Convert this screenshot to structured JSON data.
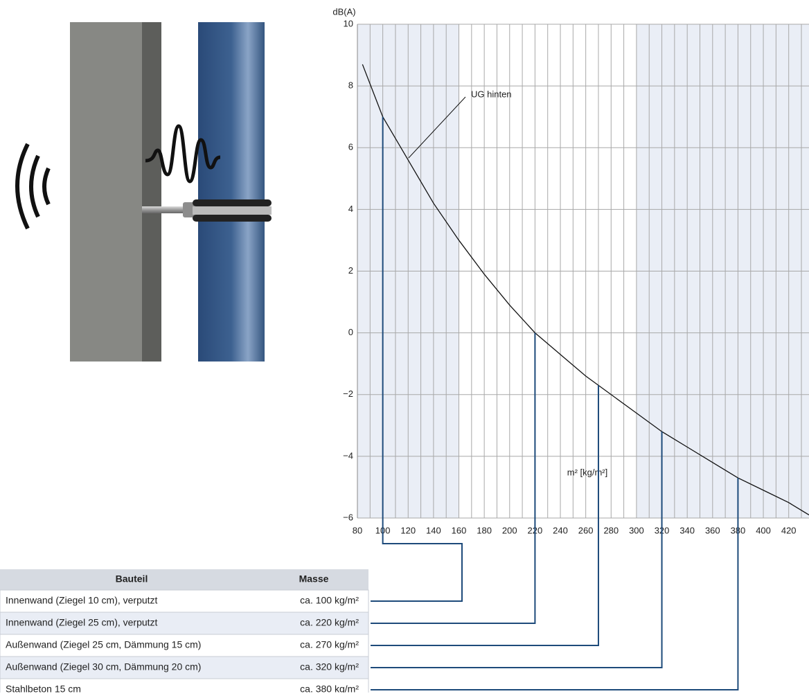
{
  "chart_data": {
    "type": "line",
    "y_label": "dB(A)",
    "x_label": "m² [kg/m²]",
    "annotation": "UG hinten",
    "x": [
      84,
      100,
      120,
      140,
      160,
      180,
      200,
      220,
      240,
      260,
      270,
      280,
      300,
      320,
      340,
      360,
      380,
      400,
      420,
      436
    ],
    "series": [
      {
        "name": "UG hinten",
        "color": "#111111",
        "values": [
          8.7,
          7.0,
          5.6,
          4.2,
          3.0,
          1.9,
          0.9,
          0,
          -0.7,
          -1.4,
          -1.7,
          -2.0,
          -2.6,
          -3.2,
          -3.7,
          -4.2,
          -4.7,
          -5.1,
          -5.5,
          -5.9
        ]
      }
    ],
    "xlim": [
      80,
      436
    ],
    "ylim": [
      -6,
      10
    ],
    "xticks": [
      80,
      100,
      120,
      140,
      160,
      180,
      200,
      220,
      240,
      260,
      280,
      300,
      320,
      340,
      360,
      380,
      400,
      420
    ],
    "yticks": [
      {
        "value": -6,
        "label": "−6"
      },
      {
        "value": -4,
        "label": "−4"
      },
      {
        "value": -2,
        "label": "−2"
      },
      0,
      2,
      4,
      6,
      8,
      10
    ],
    "grid": true,
    "shaded_bands": [
      [
        80,
        160
      ],
      [
        300,
        436
      ]
    ],
    "band_color": "#eaeef6",
    "marker_x": [
      100,
      220,
      270,
      320,
      380
    ],
    "marker_color": "#1d4a7a"
  },
  "table": {
    "header": [
      "Bauteil",
      "Masse"
    ],
    "rows": [
      [
        "Innenwand (Ziegel 10 cm), verputzt",
        "ca. 100 kg/m²"
      ],
      [
        "Innenwand (Ziegel 25 cm), verputzt",
        "ca. 220 kg/m²"
      ],
      [
        "Außenwand (Ziegel 25 cm, Dämmung 15 cm)",
        "ca. 270 kg/m²"
      ],
      [
        "Außenwand (Ziegel 30 cm, Dämmung 20 cm)",
        "ca. 320 kg/m²"
      ],
      [
        "Stahlbeton 15 cm",
        "ca. 380 kg/m²"
      ]
    ]
  }
}
